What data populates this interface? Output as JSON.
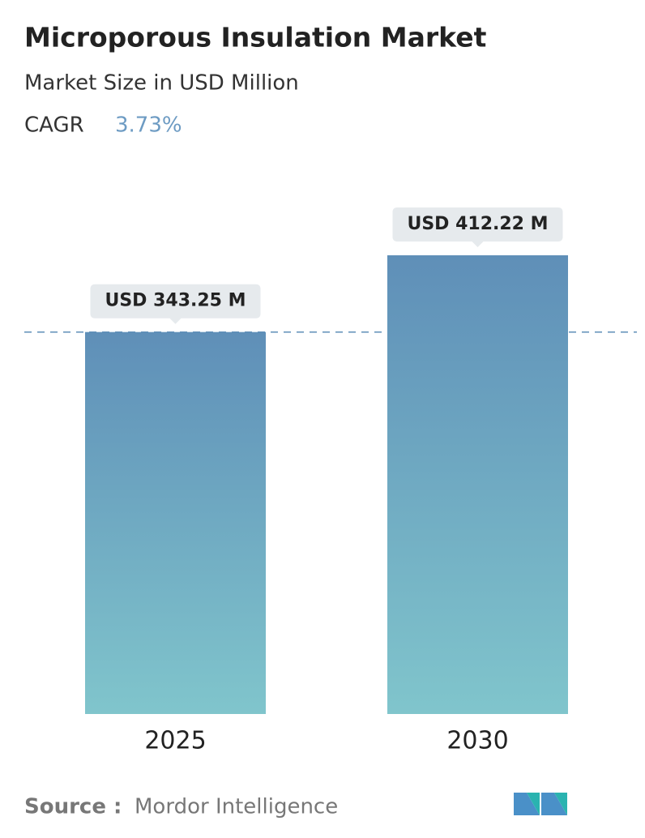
{
  "chart_data": {
    "type": "bar",
    "title": "Microporous Insulation Market",
    "subtitle": "Market Size in USD Million",
    "cagr_label": "CAGR",
    "cagr_value": "3.73%",
    "categories": [
      "2025",
      "2030"
    ],
    "values": [
      343.25,
      412.22
    ],
    "value_labels": [
      "USD 343.25 M",
      "USD 412.22 M"
    ],
    "colors": [
      "#5f8fb8",
      "#80c5cc"
    ],
    "source_label": "Source :",
    "source": "Mordor Intelligence"
  }
}
